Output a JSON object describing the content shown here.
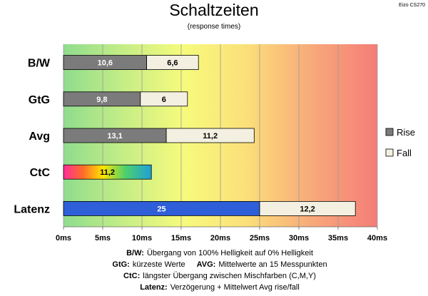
{
  "chart_data": {
    "type": "bar",
    "orientation": "horizontal",
    "stacked": true,
    "title": "Schaltzeiten",
    "subtitle": "(response times)",
    "watermark": "Eizo CS270",
    "categories": [
      "B/W",
      "GtG",
      "Avg",
      "CtC",
      "Latenz"
    ],
    "series": [
      {
        "name": "Rise",
        "values": [
          10.6,
          9.8,
          13.1,
          null,
          null
        ],
        "labels": [
          "10,6",
          "9,8",
          "13,1",
          "",
          ""
        ]
      },
      {
        "name": "Fall",
        "values": [
          6.6,
          6,
          11.2,
          null,
          12.2
        ],
        "labels": [
          "6,6",
          "6",
          "11,2",
          "",
          "12,2"
        ]
      }
    ],
    "special_bars": [
      {
        "category": "CtC",
        "value": 11.2,
        "label": "11,2",
        "start": 0,
        "fill": "rainbow"
      },
      {
        "category": "Latenz",
        "value": 25,
        "label": "25",
        "start": 0,
        "fill": "#2e5fd8"
      }
    ],
    "xlim": [
      0,
      40
    ],
    "xticks": [
      0,
      5,
      10,
      15,
      20,
      25,
      30,
      35,
      40
    ],
    "xtick_labels": [
      "0ms",
      "5ms",
      "10ms",
      "15ms",
      "20ms",
      "25ms",
      "30ms",
      "35ms",
      "40ms"
    ],
    "gridlines": true,
    "legend": {
      "position": "right",
      "entries": [
        "Rise",
        "Fall"
      ]
    },
    "background": "gradient green-yellow-orange-red",
    "colors": {
      "rise": "#7b7b7b",
      "fall": "#f3f0e1",
      "latency": "#2e5fd8"
    }
  },
  "notes": [
    {
      "key": "B/W:",
      "text": "Übergang von 100% Helligkeit auf 0% Helligkeit"
    },
    {
      "key": "GtG:",
      "text": "kürzeste Werte",
      "key2": "AVG:",
      "text2": "Mittelwerte an 15 Messpunkten"
    },
    {
      "key": "CtC:",
      "text": "längster Übergang zwischen Mischfarben (C,M,Y)"
    },
    {
      "key": "Latenz:",
      "text": "Verzögerung + Mittelwert Avg rise/fall"
    }
  ]
}
